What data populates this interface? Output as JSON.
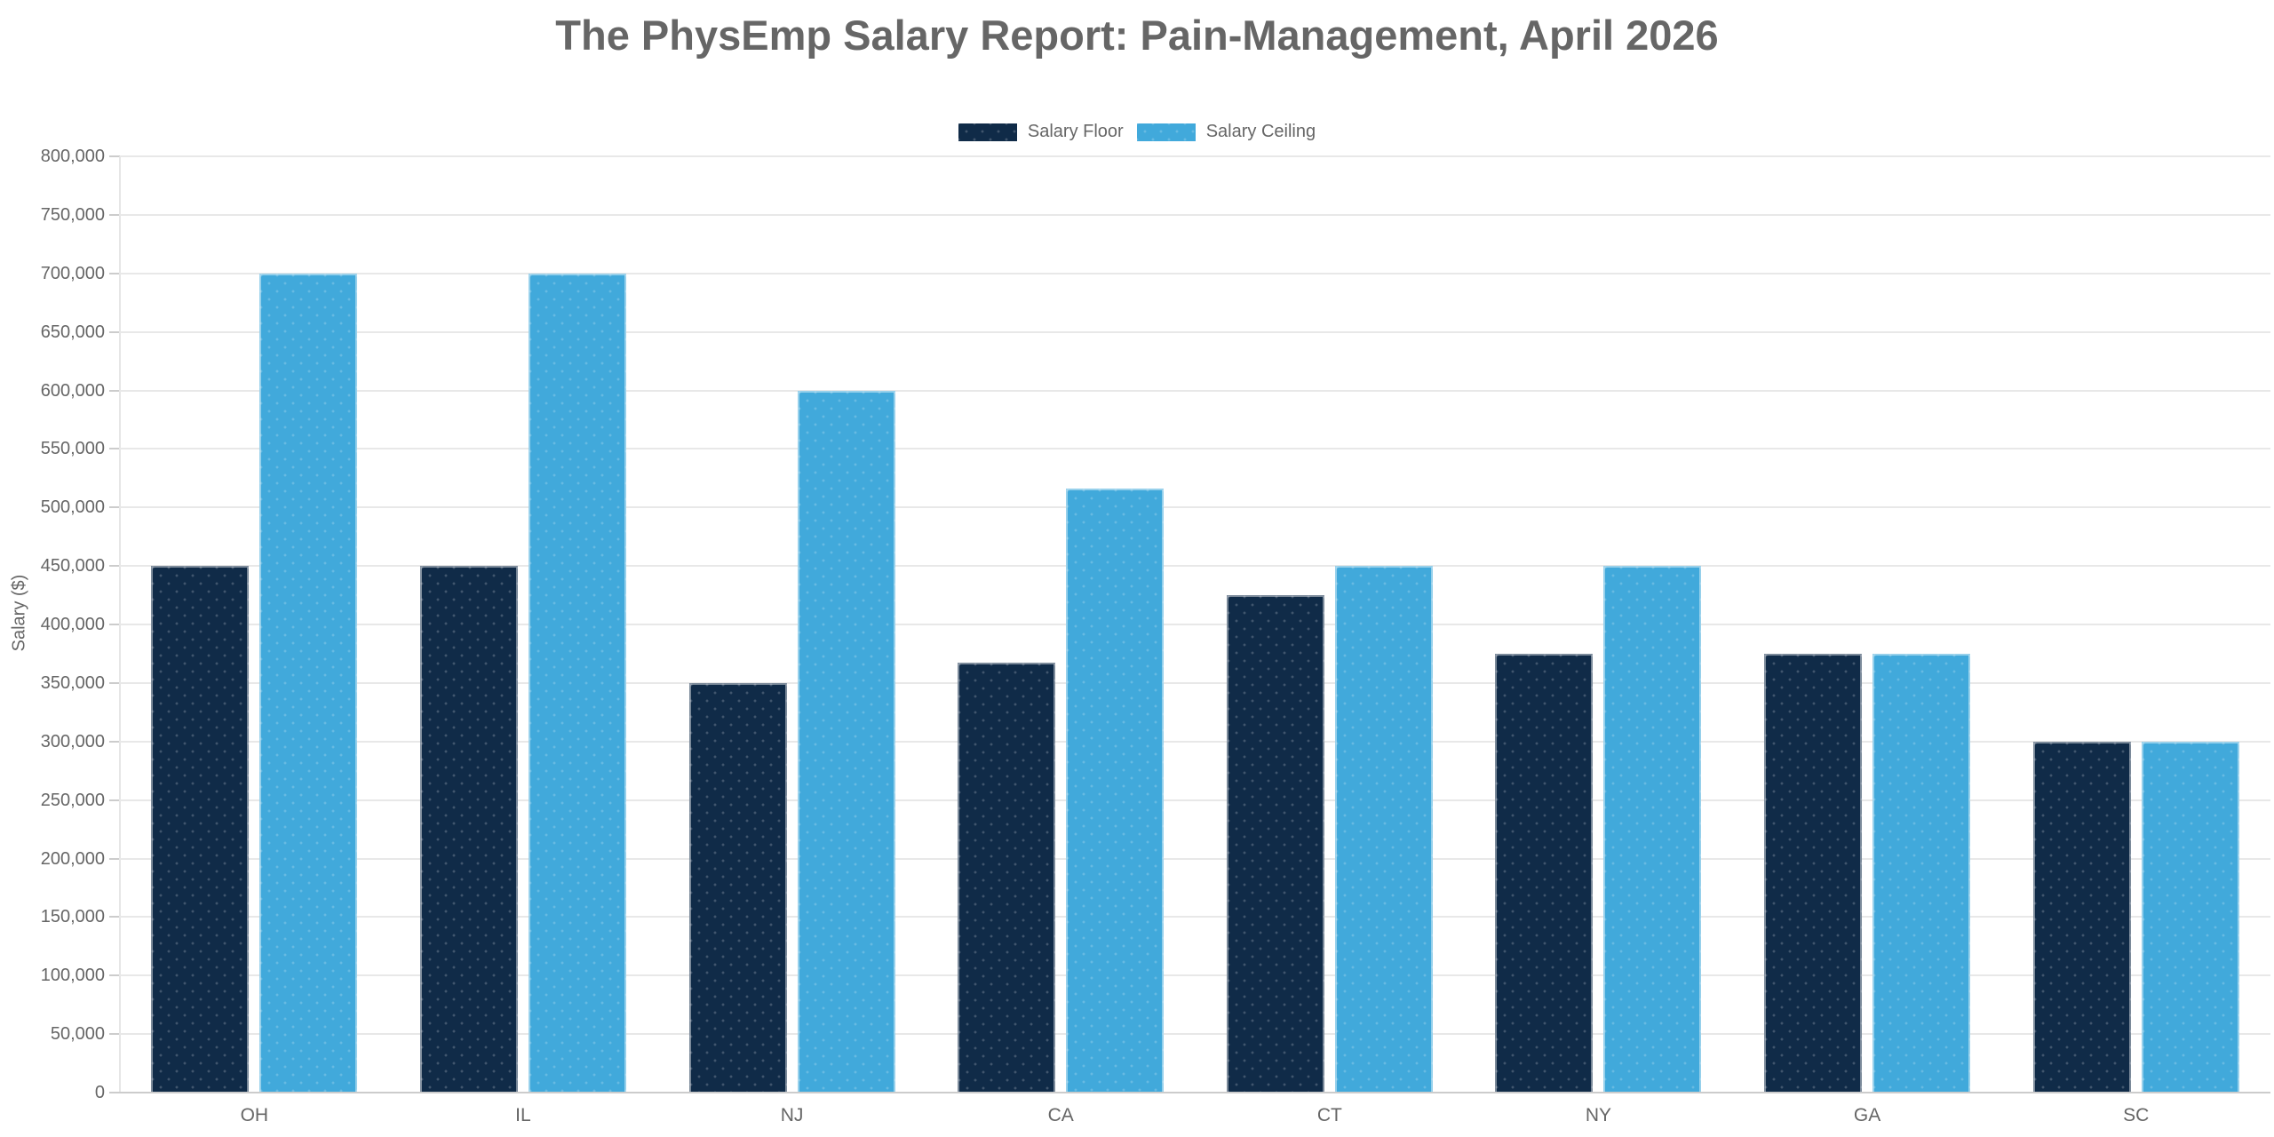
{
  "page": {
    "title": "The PhysEmp Salary Report: Pain-Management, April 2026"
  },
  "chart_data": {
    "type": "bar",
    "title": "The PhysEmp Salary Report: Pain-Management, April 2026",
    "categories": [
      "OH",
      "IL",
      "NJ",
      "CA",
      "CT",
      "NY",
      "GA",
      "SC"
    ],
    "series": [
      {
        "name": "Salary Floor",
        "color": "#102B48",
        "values": [
          450000,
          450000,
          350000,
          367000,
          425000,
          375000,
          375000,
          300000
        ]
      },
      {
        "name": "Salary Ceiling",
        "color": "#41A9DB",
        "values": [
          700000,
          700000,
          600000,
          516000,
          450000,
          450000,
          375000,
          300000
        ]
      }
    ],
    "xlabel": "",
    "ylabel": "Salary ($)",
    "ylim": [
      0,
      800000
    ],
    "ytick_step": 50000,
    "ytick_labels": [
      "0",
      "50,000",
      "100,000",
      "150,000",
      "200,000",
      "250,000",
      "300,000",
      "350,000",
      "400,000",
      "450,000",
      "500,000",
      "550,000",
      "600,000",
      "650,000",
      "700,000",
      "750,000",
      "800,000"
    ],
    "grid": "horizontal-only",
    "legend_position": "top-center",
    "colors": {
      "background": "#ffffff",
      "text": "#666666",
      "gridline": "#e8e8e8",
      "axis_line": "#cccccc"
    }
  }
}
